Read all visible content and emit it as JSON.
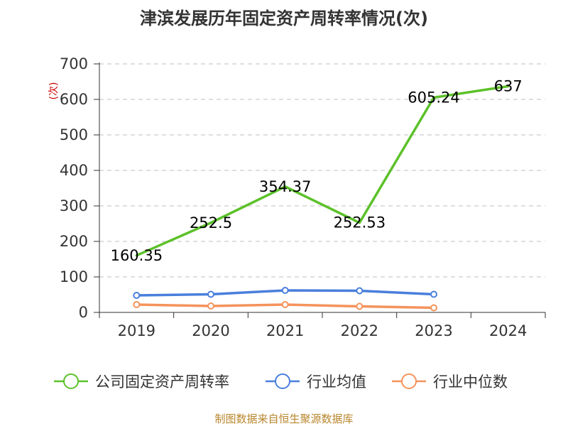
{
  "chart_data": {
    "type": "line",
    "title": "津滨发展历年固定资产周转率情况(次)",
    "ylabel": "(次)",
    "xlabel": "",
    "categories": [
      "2019",
      "2020",
      "2021",
      "2022",
      "2023",
      "2024"
    ],
    "ylim": [
      0,
      700
    ],
    "yticks": [
      0,
      100,
      200,
      300,
      400,
      500,
      600,
      700
    ],
    "grid": "horizontal-dashed",
    "legend_position": "bottom",
    "series": [
      {
        "name": "公司固定资产周转率",
        "color": "#5cc12a",
        "values": [
          160.35,
          252.5,
          354.37,
          252.53,
          605.24,
          637
        ],
        "labels": [
          "160.35",
          "252.5",
          "354.37",
          "252.53",
          "605.24",
          "637"
        ],
        "markers": false
      },
      {
        "name": "行业均值",
        "color": "#4a7fdc",
        "values": [
          48,
          51,
          62,
          61,
          51,
          null
        ],
        "markers": true
      },
      {
        "name": "行业中位数",
        "color": "#f4935c",
        "values": [
          22,
          18,
          22,
          17,
          13,
          null
        ],
        "markers": true
      }
    ]
  },
  "source_text": "制图数据来自恒生聚源数据库"
}
